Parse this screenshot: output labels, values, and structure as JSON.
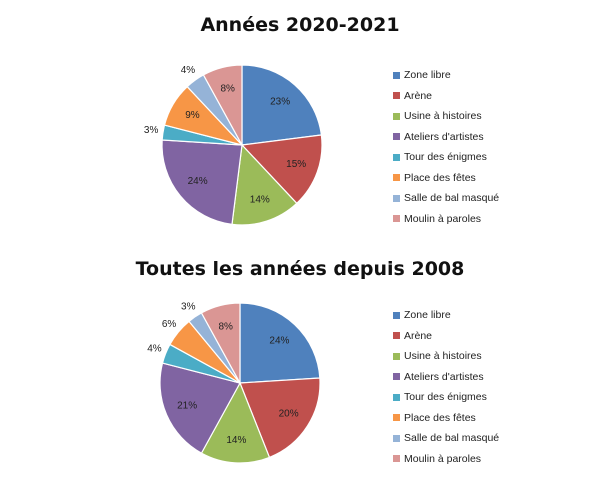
{
  "chart_data": [
    {
      "type": "pie",
      "title": "Années 2020-2021",
      "categories": [
        "Zone libre",
        "Arène",
        "Usine à histoires",
        "Ateliers d'artistes",
        "Tour des énigmes",
        "Place des fêtes",
        "Salle de bal masqué",
        "Moulin à paroles"
      ],
      "values": [
        23,
        15,
        14,
        24,
        3,
        9,
        4,
        8
      ],
      "data_labels": [
        "23%",
        "15%",
        "14%",
        "24%",
        "3%",
        "9%",
        "4%",
        "8%"
      ],
      "colors": [
        "#4F81BD",
        "#C0504D",
        "#9BBB59",
        "#8064A2",
        "#4BACC6",
        "#F79646",
        "#95B3D7",
        "#DA9694"
      ],
      "legend_position": "right"
    },
    {
      "type": "pie",
      "title": "Toutes les années depuis 2008",
      "categories": [
        "Zone libre",
        "Arène",
        "Usine à histoires",
        "Ateliers d'artistes",
        "Tour des énigmes",
        "Place des fêtes",
        "Salle de bal masqué",
        "Moulin à paroles"
      ],
      "values": [
        24,
        20,
        14,
        21,
        4,
        6,
        3,
        8
      ],
      "data_labels": [
        "24%",
        "20%",
        "14%",
        "21%",
        "4%",
        "6%",
        "3%",
        "8%"
      ],
      "colors": [
        "#4F81BD",
        "#C0504D",
        "#9BBB59",
        "#8064A2",
        "#4BACC6",
        "#F79646",
        "#95B3D7",
        "#DA9694"
      ],
      "legend_position": "right"
    }
  ]
}
